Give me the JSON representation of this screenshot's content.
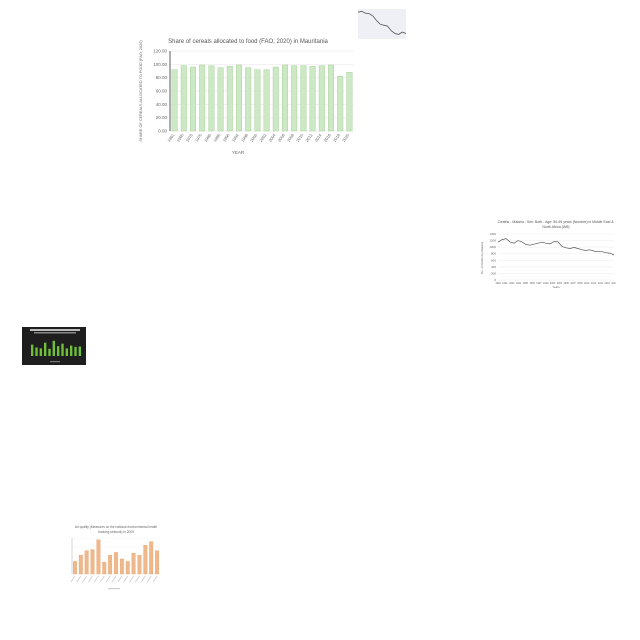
{
  "chart_data": [
    {
      "id": "main",
      "type": "bar",
      "title": "Share of cereals allocated to food (FAO, 2020)  in Mauritania",
      "xlabel": "YEAR",
      "ylabel": "SHARE OF CEREALS ALLOCATED TO FOOD (FAO, 2020)",
      "ylim": [
        0,
        120
      ],
      "yticks": [
        "0.00",
        "20.00",
        "40.00",
        "60.00",
        "80.00",
        "100.00",
        "120.00"
      ],
      "categories": [
        "1961",
        "1965",
        "1970",
        "1975",
        "1980",
        "1985",
        "1990",
        "1994",
        "1998",
        "2000",
        "2002",
        "2004",
        "2006",
        "2008",
        "2010",
        "2012",
        "2014",
        "2016",
        "2018",
        "2020"
      ],
      "values": [
        92,
        98,
        96,
        99,
        98,
        95,
        97,
        99,
        95,
        92,
        92,
        96,
        99,
        98,
        98,
        97,
        98,
        99,
        82,
        88
      ],
      "colors": {
        "bar": "#cde8c4",
        "bar_edge": "#9ccb8e",
        "grid": "#e6e6e6"
      }
    },
    {
      "id": "top-right",
      "type": "line",
      "title": "",
      "xlabel": "",
      "ylabel": "",
      "values": [
        98,
        100,
        96,
        95,
        90,
        80,
        72,
        70,
        68,
        58,
        52,
        50,
        55,
        52
      ],
      "ylim": [
        40,
        105
      ],
      "colors": {
        "line": "#555555",
        "background": "#eef0f5"
      }
    },
    {
      "id": "right-line",
      "type": "line",
      "title": "Deaths - Malaria - Sex: Both - Age: 50-69 years (Number) in Middle East & North Africa (WB)",
      "xlabel": "Years",
      "ylabel": "No. of deaths by Malaria",
      "yticks": [
        "0",
        "200",
        "400",
        "600",
        "800",
        "1000",
        "1200",
        "1400"
      ],
      "ylim": [
        0,
        1400
      ],
      "categories": [
        "1990",
        "1991",
        "1992",
        "1993",
        "1994",
        "1995",
        "1996",
        "1997",
        "1998",
        "1999",
        "2000",
        "2001",
        "2002",
        "2003",
        "2004",
        "2005",
        "2006",
        "2007",
        "2008",
        "2009",
        "2010",
        "2011",
        "2012",
        "2013",
        "2014",
        "2015",
        "2016",
        "2017",
        "2018",
        "2019"
      ],
      "values": [
        1150,
        1230,
        1260,
        1160,
        1120,
        1200,
        1160,
        1080,
        1060,
        1090,
        1120,
        1150,
        1120,
        1100,
        1170,
        1160,
        1020,
        980,
        960,
        990,
        960,
        920,
        900,
        920,
        880,
        860,
        860,
        830,
        820,
        760
      ],
      "xticks": [
        "1990",
        "1991",
        "1993",
        "1994",
        "1995",
        "1996",
        "1997",
        "1999",
        "2000",
        "2003",
        "2005",
        "2007",
        "2008",
        "2010",
        "2013",
        "2015",
        "2018",
        "2019"
      ],
      "colors": {
        "line": "#555555",
        "grid": "#e6e6e6"
      }
    },
    {
      "id": "dark-bars",
      "type": "bar",
      "title": "",
      "xlabel": "",
      "ylabel": "",
      "values": [
        60,
        45,
        40,
        70,
        38,
        80,
        52,
        65,
        40,
        55,
        48,
        50
      ],
      "ylim": [
        0,
        100
      ],
      "colors": {
        "bar": "#6fbf3a",
        "background": "#1e1e1e"
      }
    },
    {
      "id": "orange-bars",
      "type": "bar",
      "title": "Air quality (Measures on the national environmental health tracking network) in 2009",
      "xlabel": "",
      "ylabel": "",
      "values": [
        35,
        52,
        65,
        68,
        95,
        33,
        52,
        60,
        42,
        35,
        58,
        52,
        80,
        90,
        65
      ],
      "ylim": [
        0,
        100
      ],
      "colors": {
        "bar": "#f0b88a",
        "bar_edge": "#e39a62",
        "grid": "#eeeeee"
      }
    }
  ]
}
